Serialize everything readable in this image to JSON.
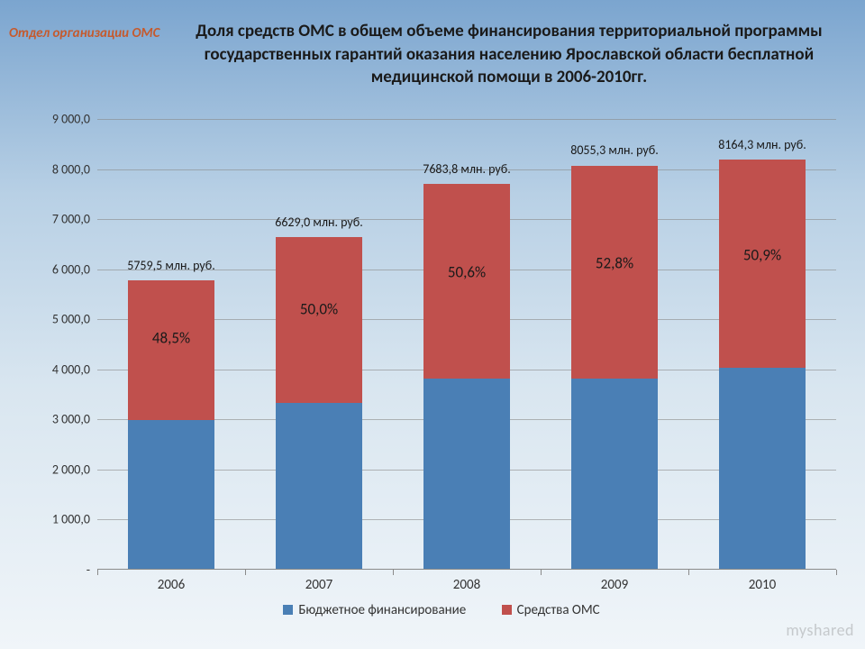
{
  "corner_label": "Отдел организации ОМС",
  "title": "Доля средств ОМС в общем объеме финансирования территориальной программы государственных гарантий оказания населению Ярославской области бесплатной медицинской помощи в 2006-2010гг.",
  "chart": {
    "type": "stacked-bar",
    "y_axis": {
      "min": 0,
      "max": 9000,
      "step": 1000,
      "ticks": [
        "-",
        "1 000,0",
        "2 000,0",
        "3 000,0",
        "4 000,0",
        "5 000,0",
        "6 000,0",
        "7 000,0",
        "8 000,0",
        "9 000,0"
      ],
      "label_fontsize": 14,
      "grid_color": "#8a8a8a"
    },
    "categories": [
      "2006",
      "2007",
      "2008",
      "2009",
      "2010"
    ],
    "bar_width_ratio": 0.59,
    "series": {
      "bottom": {
        "name": "Бюджетное финансирование",
        "color": "#4a7fb5"
      },
      "top": {
        "name": "Средства ОМС",
        "color": "#c0504d"
      }
    },
    "data": [
      {
        "year": "2006",
        "total": 5759.5,
        "top_pct": 48.5,
        "total_label": "5759,5 млн. руб.",
        "pct_label": "48,5%"
      },
      {
        "year": "2007",
        "total": 6629.0,
        "top_pct": 50.0,
        "total_label": "6629,0 млн. руб.",
        "pct_label": "50,0%"
      },
      {
        "year": "2008",
        "total": 7683.8,
        "top_pct": 50.6,
        "total_label": "7683,8 млн. руб.",
        "pct_label": "50,6%"
      },
      {
        "year": "2009",
        "total": 8055.3,
        "top_pct": 52.8,
        "total_label": "8055,3 млн. руб.",
        "pct_label": "52,8%"
      },
      {
        "year": "2010",
        "total": 8164.3,
        "top_pct": 50.9,
        "total_label": "8164,3 млн. руб.",
        "pct_label": "50,9%"
      }
    ],
    "legend_fontsize": 15,
    "xlabel_fontsize": 15
  },
  "watermark": "myshared"
}
